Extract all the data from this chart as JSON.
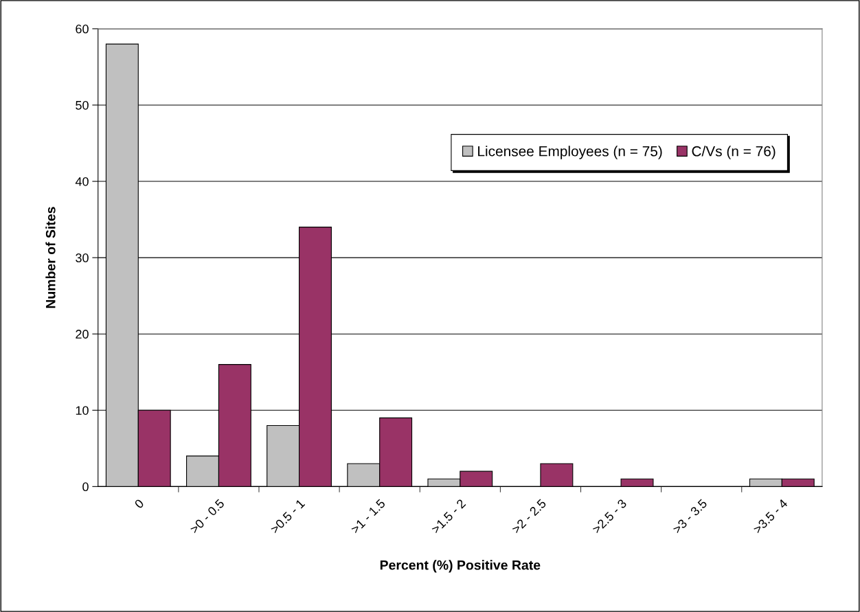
{
  "chart_data": {
    "type": "bar",
    "xlabel": "Percent (%) Positive Rate",
    "ylabel": "Number of Sites",
    "categories": [
      "0",
      ">0 - 0.5",
      ">0.5 - 1",
      ">1 - 1.5",
      ">1.5 - 2",
      ">2 - 2.5",
      ">2.5 - 3",
      ">3 - 3.5",
      ">3.5 - 4"
    ],
    "series": [
      {
        "name": "Licensee Employees (n = 75)",
        "color": "#c0c0c0",
        "values": [
          58,
          4,
          8,
          3,
          1,
          0,
          0,
          0,
          1
        ]
      },
      {
        "name": "C/Vs (n = 76)",
        "color": "#993366",
        "values": [
          10,
          16,
          34,
          9,
          2,
          3,
          1,
          0,
          1
        ]
      }
    ],
    "ylim": [
      0,
      60
    ],
    "yticks": [
      0,
      10,
      20,
      30,
      40,
      50,
      60
    ],
    "grid": "y",
    "legend": "top right"
  }
}
